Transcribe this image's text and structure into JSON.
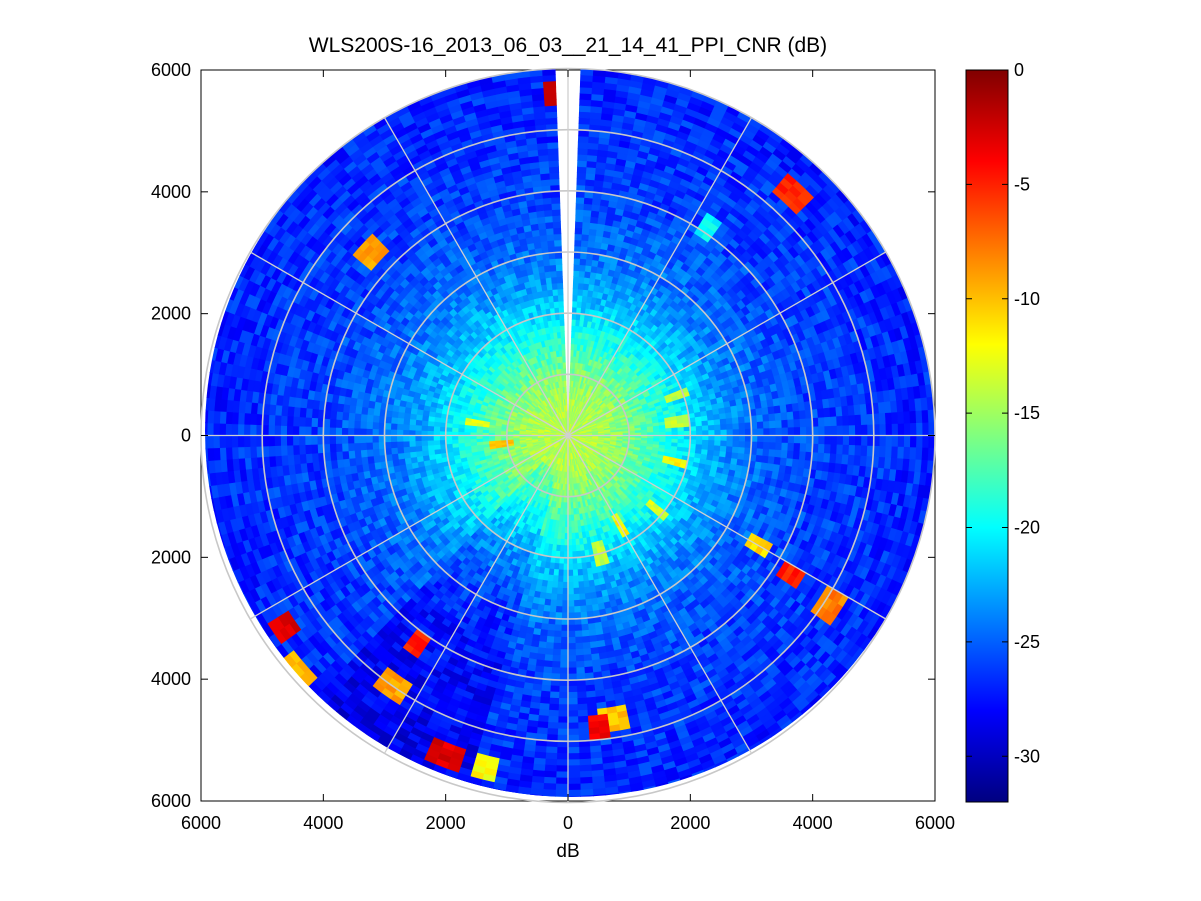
{
  "chart_data": {
    "type": "heatmap",
    "subtype": "polar PPI scan",
    "title": "WLS200S-16_2013_06_03__21_14_41_PPI_CNR (dB)",
    "xlabel": "dB",
    "ylabel": "",
    "xlim": [
      -6000,
      6000
    ],
    "ylim": [
      -6000,
      6000
    ],
    "x_ticks": [
      -6000,
      -4000,
      -2000,
      0,
      2000,
      4000,
      6000
    ],
    "y_ticks": [
      6000,
      4000,
      2000,
      0,
      -2000,
      -4000,
      -6000
    ],
    "x_tick_labels": [
      "6000",
      "4000",
      "2000",
      "0",
      "2000",
      "4000",
      "6000"
    ],
    "y_tick_labels": [
      "6000",
      "4000",
      "2000",
      "0",
      "2000",
      "4000",
      "6000"
    ],
    "max_range": 6000,
    "range_rings": [
      1000,
      2000,
      3000,
      4000,
      5000,
      6000
    ],
    "spoke_angles_deg": [
      0,
      30,
      60,
      90,
      120,
      150,
      180,
      210,
      240,
      270,
      300,
      330
    ],
    "grid": true,
    "colormap": "jet",
    "colorbar": {
      "min": -32,
      "max": 0,
      "ticks": [
        0,
        -5,
        -10,
        -15,
        -20,
        -25,
        -30
      ],
      "tick_labels": [
        "0",
        "-5",
        "-10",
        "-15",
        "-20",
        "-25",
        "-30"
      ]
    },
    "data_gap_sector_deg": [
      -2,
      2
    ],
    "cnr_by_range": [
      {
        "range": 0,
        "value": -14
      },
      {
        "range": 500,
        "value": -14.5
      },
      {
        "range": 1000,
        "value": -16
      },
      {
        "range": 1500,
        "value": -18.5
      },
      {
        "range": 2000,
        "value": -21
      },
      {
        "range": 2500,
        "value": -23
      },
      {
        "range": 3000,
        "value": -24.5
      },
      {
        "range": 4000,
        "value": -26
      },
      {
        "range": 5000,
        "value": -26.5
      },
      {
        "range": 6000,
        "value": -27
      }
    ],
    "hotspots": [
      {
        "azimuth_deg": -2,
        "range": 5600,
        "value": -3
      },
      {
        "azimuth_deg": 43,
        "range": 5400,
        "value": -5
      },
      {
        "azimuth_deg": -47,
        "range": 4400,
        "value": -9
      },
      {
        "azimuth_deg": 34,
        "range": 4100,
        "value": -20
      },
      {
        "azimuth_deg": 120,
        "range": 3600,
        "value": -11
      },
      {
        "azimuth_deg": 122,
        "range": 4300,
        "value": -5
      },
      {
        "azimuth_deg": 123,
        "range": 5100,
        "value": -8
      },
      {
        "azimuth_deg": -124,
        "range": 5600,
        "value": -3
      },
      {
        "azimuth_deg": -131,
        "range": 5900,
        "value": -10
      },
      {
        "azimuth_deg": -144,
        "range": 4200,
        "value": -5
      },
      {
        "azimuth_deg": -145,
        "range": 5000,
        "value": -9
      },
      {
        "azimuth_deg": -159,
        "range": 5600,
        "value": -3
      },
      {
        "azimuth_deg": -166,
        "range": 5600,
        "value": -12
      },
      {
        "azimuth_deg": 174,
        "range": 4800,
        "value": -4
      },
      {
        "azimuth_deg": 171,
        "range": 4700,
        "value": -10
      },
      {
        "azimuth_deg": 165,
        "range": 2000,
        "value": -14
      },
      {
        "azimuth_deg": 150,
        "range": 1700,
        "value": -12
      },
      {
        "azimuth_deg": 130,
        "range": 1900,
        "value": -13
      },
      {
        "azimuth_deg": 104,
        "range": 1800,
        "value": -12
      },
      {
        "azimuth_deg": 83,
        "range": 1800,
        "value": -14
      },
      {
        "azimuth_deg": 70,
        "range": 1900,
        "value": -14
      },
      {
        "azimuth_deg": -97,
        "range": 1100,
        "value": -10
      },
      {
        "azimuth_deg": -82,
        "range": 1500,
        "value": -13
      }
    ]
  }
}
